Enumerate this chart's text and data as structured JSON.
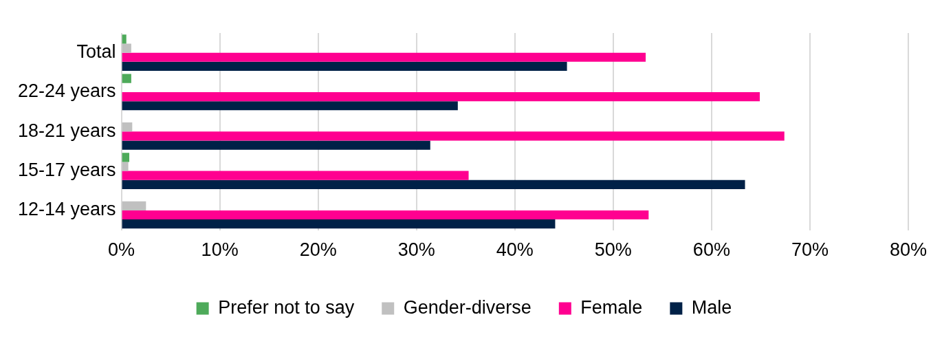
{
  "chart_data": {
    "type": "bar",
    "orientation": "horizontal",
    "categories": [
      "Total",
      "22-24 years",
      "18-21 years",
      "15-17 years",
      "12-14 years"
    ],
    "series": [
      {
        "name": "Prefer not to say",
        "color": "#4eaa5a",
        "values": [
          0.5,
          1.0,
          null,
          0.8,
          null
        ]
      },
      {
        "name": "Gender-diverse",
        "color": "#c0c0c0",
        "values": [
          1.0,
          null,
          1.1,
          0.7,
          2.5
        ]
      },
      {
        "name": "Female",
        "color": "#ff0090",
        "values": [
          53.3,
          64.9,
          67.4,
          35.3,
          53.6
        ]
      },
      {
        "name": "Male",
        "color": "#002147",
        "values": [
          45.3,
          34.2,
          31.4,
          63.4,
          44.1
        ]
      }
    ],
    "xlim": [
      0,
      80
    ],
    "xticks": [
      {
        "value": 0,
        "label": "0%"
      },
      {
        "value": 10,
        "label": "10%"
      },
      {
        "value": 20,
        "label": "20%"
      },
      {
        "value": 30,
        "label": "30%"
      },
      {
        "value": 40,
        "label": "40%"
      },
      {
        "value": 50,
        "label": "50%"
      },
      {
        "value": 60,
        "label": "60%"
      },
      {
        "value": 70,
        "label": "70%"
      },
      {
        "value": 80,
        "label": "80%"
      }
    ],
    "grid": "x",
    "legend": "bottom"
  }
}
